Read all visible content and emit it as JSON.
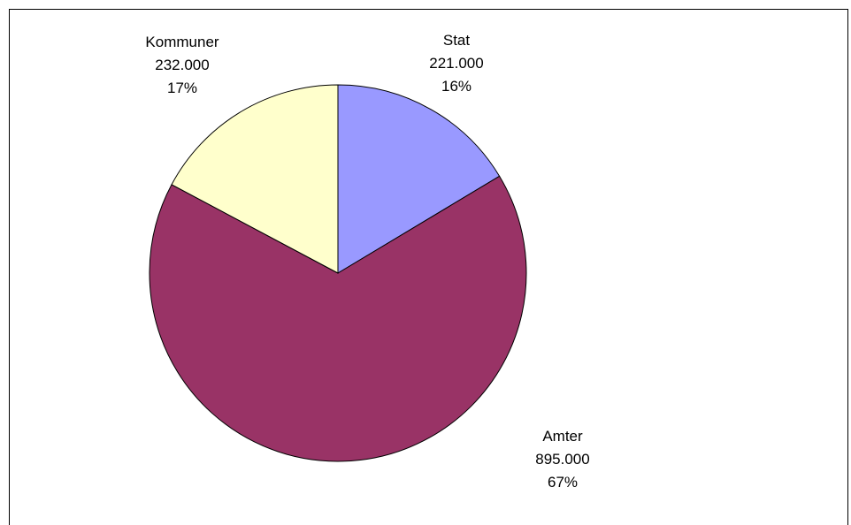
{
  "chart_data": {
    "type": "pie",
    "title": "",
    "legend": "none",
    "start_angle_deg": 0,
    "direction": "clockwise",
    "slices": [
      {
        "label": "Stat",
        "value_text": "221.000",
        "value": 221000,
        "percent_text": "16%",
        "color": "#9999ff"
      },
      {
        "label": "Amter",
        "value_text": "895.000",
        "value": 895000,
        "percent_text": "67%",
        "color": "#993366"
      },
      {
        "label": "Kommuner",
        "value_text": "232.000",
        "value": 232000,
        "percent_text": "17%",
        "color": "#ffffcc"
      }
    ]
  }
}
